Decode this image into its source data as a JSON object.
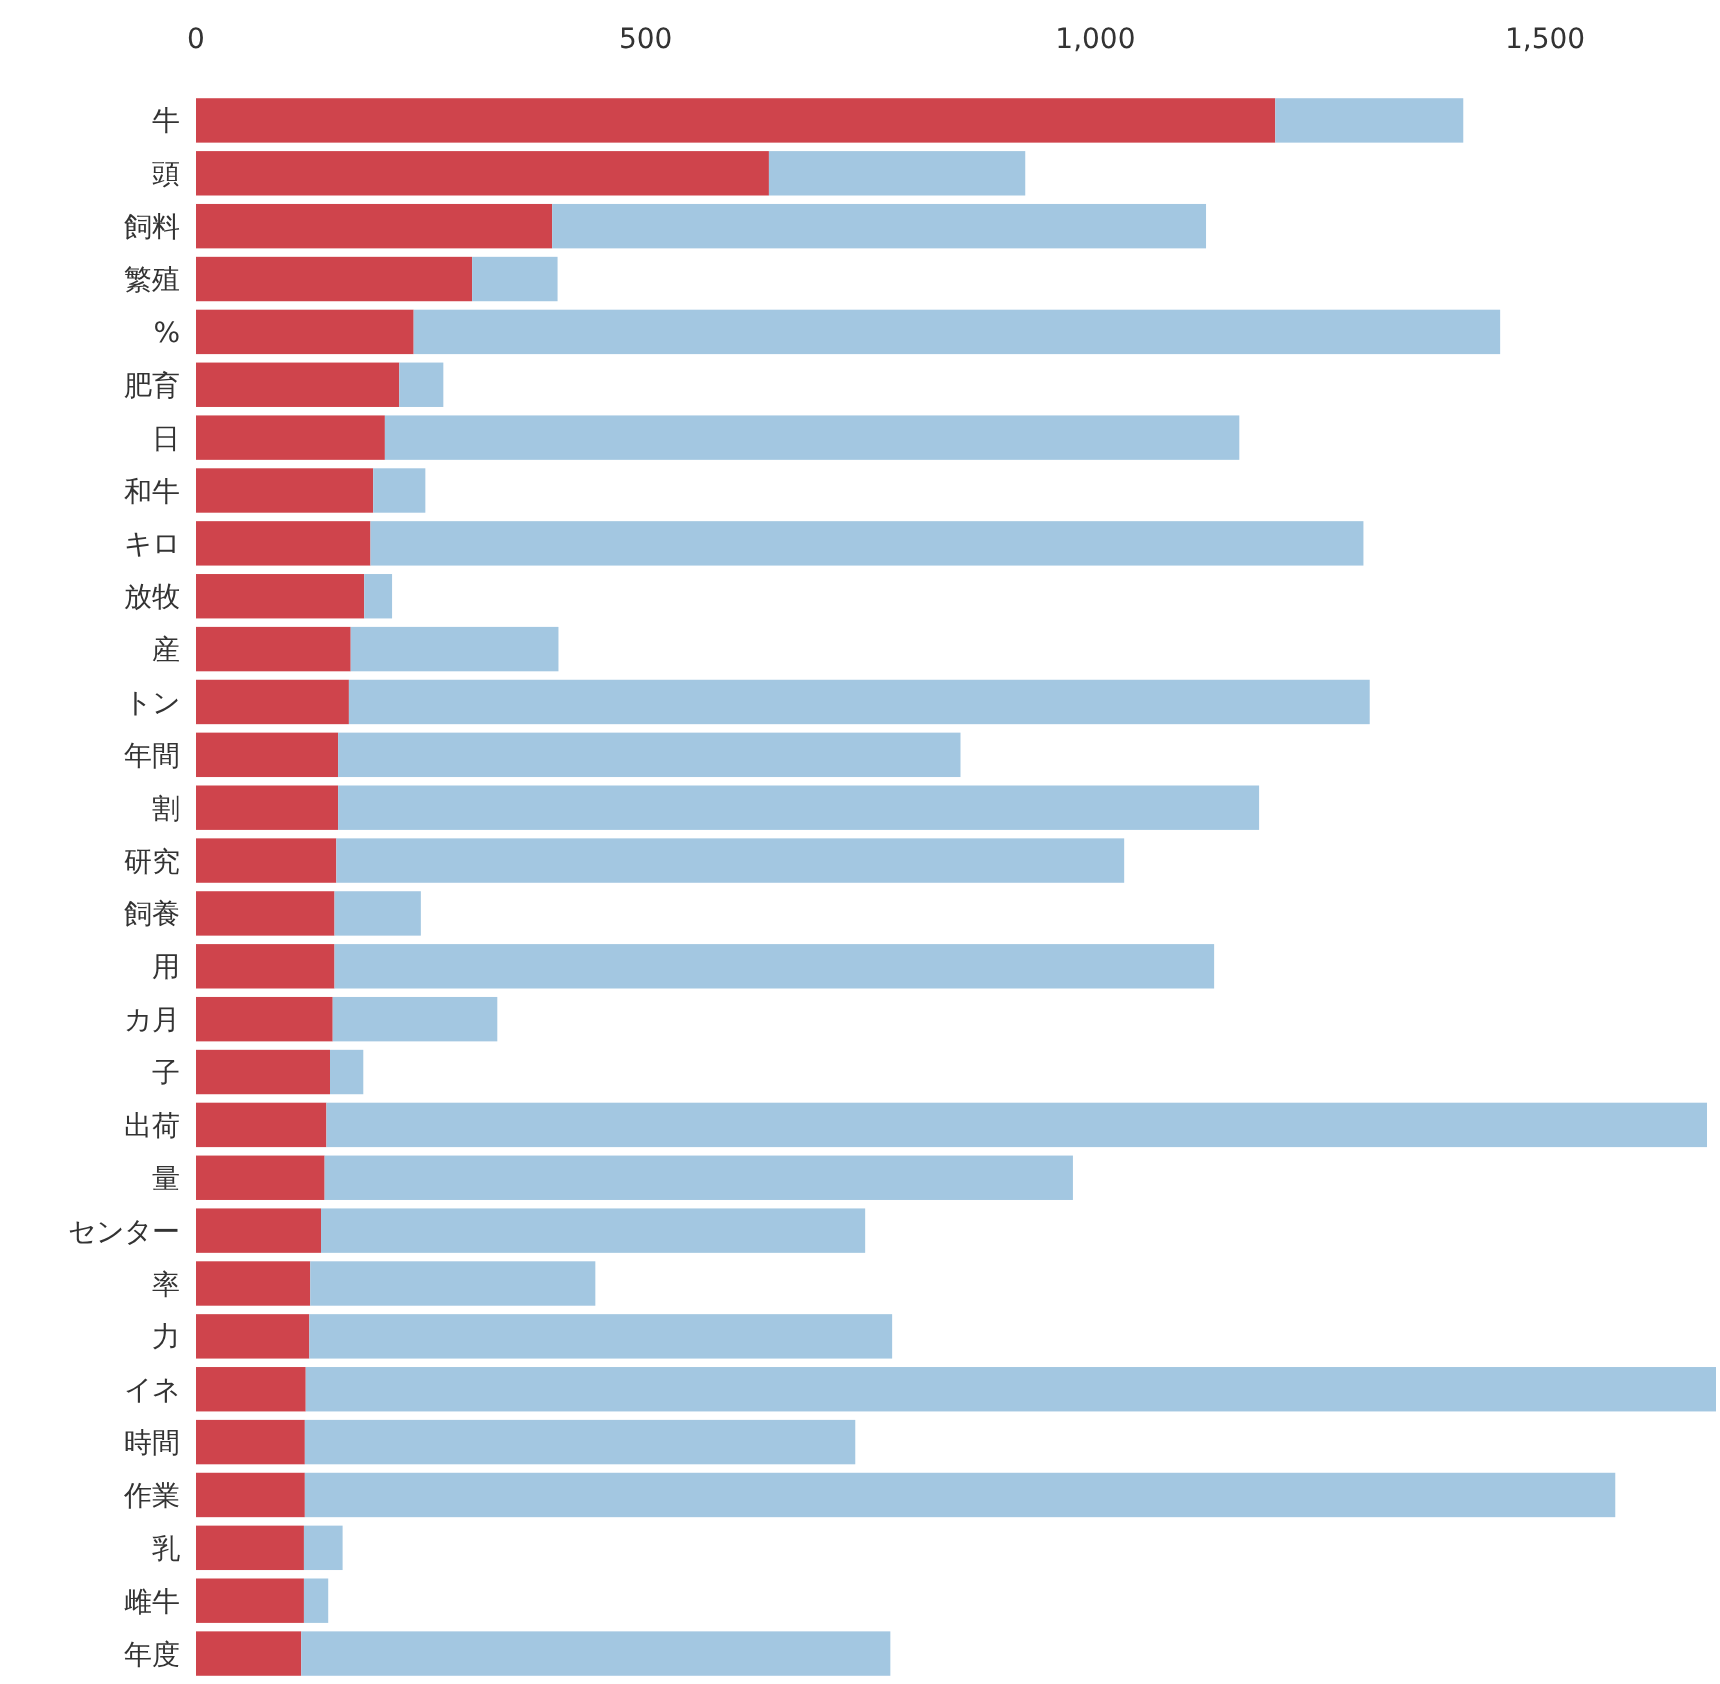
{
  "chart_data": {
    "type": "bar",
    "orientation": "horizontal",
    "stacked": true,
    "categories": [
      "牛",
      "頭",
      "飼料",
      "繁殖",
      "%",
      "肥育",
      "日",
      "和牛",
      "キロ",
      "放牧",
      "産",
      "トン",
      "年間",
      "割",
      "研究",
      "飼養",
      "用",
      "カ月",
      "子",
      "出荷",
      "量",
      "センター",
      "率",
      "力",
      "イネ",
      "時間",
      "作業",
      "乳",
      "雌牛",
      "年度"
    ],
    "series": [
      {
        "color": "#cf444c",
        "values": [
          1200,
          637,
          396,
          307,
          242,
          226,
          210,
          197,
          194,
          187,
          172,
          170,
          158,
          158,
          156,
          154,
          154,
          152,
          149,
          145,
          143,
          139,
          127,
          126,
          122,
          121,
          121,
          120,
          120,
          117
        ]
      },
      {
        "color": "#a3c7e1",
        "values": [
          209,
          285,
          727,
          95,
          1208,
          49,
          950,
          58,
          1104,
          31,
          231,
          1135,
          692,
          1024,
          876,
          96,
          978,
          183,
          37,
          1535,
          832,
          605,
          317,
          648,
          1568,
          612,
          1457,
          43,
          27,
          655
        ]
      }
    ],
    "xlim": [
      0,
      1690
    ],
    "xticks": [
      0,
      {
        "value": 500,
        "label": "500"
      },
      {
        "value": 1000,
        "label": "1,000"
      },
      {
        "value": 1500,
        "label": "1,500"
      }
    ],
    "grid": false
  }
}
